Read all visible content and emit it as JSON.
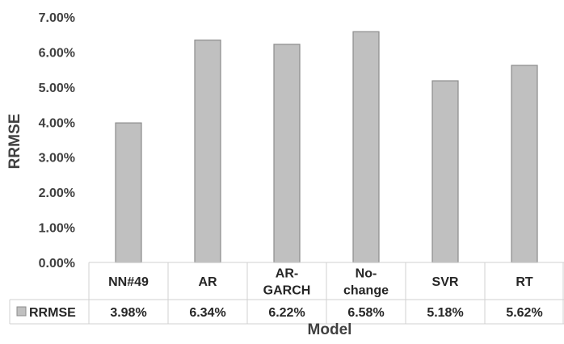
{
  "chart_data": {
    "type": "bar",
    "categories": [
      [
        "NN#49"
      ],
      [
        "AR"
      ],
      [
        "AR-",
        "GARCH"
      ],
      [
        "No-",
        "change"
      ],
      [
        "SVR"
      ],
      [
        "RT"
      ]
    ],
    "series": [
      {
        "name": "RRMSE",
        "values": [
          3.98,
          6.34,
          6.22,
          6.58,
          5.18,
          5.62
        ],
        "labels": [
          "3.98%",
          "6.34%",
          "6.22%",
          "6.58%",
          "5.18%",
          "5.62%"
        ]
      }
    ],
    "yticks": [
      "0.00%",
      "1.00%",
      "2.00%",
      "3.00%",
      "4.00%",
      "5.00%",
      "6.00%",
      "7.00%"
    ],
    "ylim": [
      0,
      7
    ],
    "ylabel": "RRMSE",
    "xlabel": "Model",
    "grid": false,
    "legend": "data-table",
    "colors": {
      "bar_fill": "#c0c0c0",
      "bar_stroke": "#8c8c8c",
      "table_line": "#d0d0d0",
      "text": "#404040"
    }
  }
}
